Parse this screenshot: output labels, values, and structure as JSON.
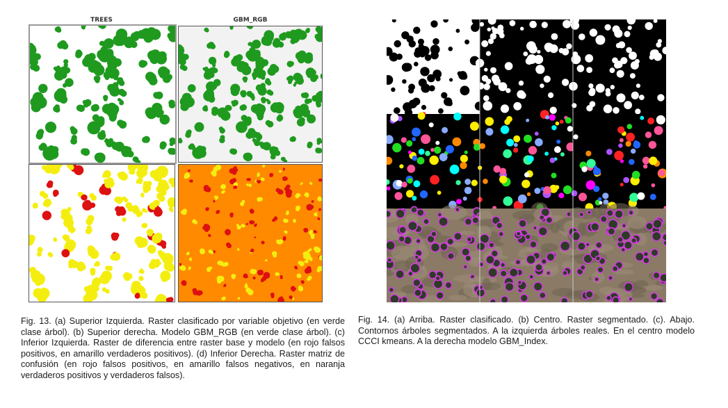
{
  "fig13": {
    "panels": {
      "a": {
        "title": "TREES"
      },
      "b": {
        "title": "GBM_RGB"
      }
    },
    "caption": "Fig. 13. (a) Superior Izquierda. Raster clasificado por variable objetivo (en verde clase árbol). (b) Superior derecha. Modelo GBM_RGB (en verde clase árbol). (c) Inferior Izquierda. Raster de diferencia entre raster base y modelo (en rojo falsos positivos, en amarillo verdaderos positivos). (d) Inferior Derecha. Raster matriz de confusión (en rojo falsos positivos, en amarillo falsos negativos, en naranja verdaderos positivos y verdaderos falsos)."
  },
  "fig14": {
    "caption": "Fig. 14. (a) Arriba. Raster clasificado. (b) Centro. Raster segmentado. (c). Abajo. Contornos árboles segmentados. A la izquierda árboles reales. En el centro modelo CCCI kmeans. A la derecha modelo GBM_Index."
  },
  "colors": {
    "tree_green": "#1f9a1f",
    "false_positive_red": "#dd1111",
    "true_positive_yellow": "#f4ee10",
    "true_orange": "#ff8a00",
    "contour_magenta": "#d43be0",
    "aerial_ground": "#8a7a66"
  }
}
